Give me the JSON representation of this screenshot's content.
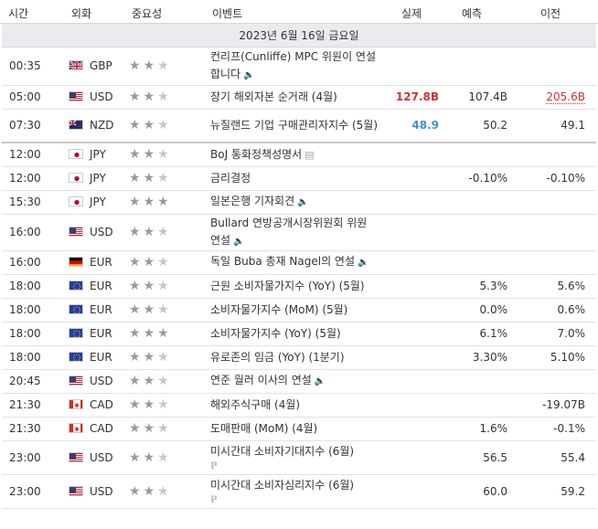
{
  "header": {
    "time": "시간",
    "currency": "외화",
    "importance": "중요성",
    "event": "이벤트",
    "actual": "실제",
    "forecast": "예측",
    "previous": "이전"
  },
  "date_label": "2023년 6월 16일 금요일",
  "colors": {
    "red": "#d32f2f",
    "blue": "#3f8fd6",
    "date_bg": "#e9ebef"
  },
  "rows": [
    {
      "time": "00:35",
      "currency": "GBP",
      "flag": "gb",
      "stars": 2,
      "event": "컨리프(Cunliffe) MPC 위원이 연설합니다",
      "icon": "speaker-icon",
      "actual": "",
      "forecast": "",
      "previous": ""
    },
    {
      "time": "05:00",
      "currency": "USD",
      "flag": "us",
      "stars": 2,
      "event": "장기 해외자본 순거래 (4월)",
      "icon": "",
      "actual": "127.8B",
      "actual_color": "red",
      "forecast": "107.4B",
      "previous": "205.6B",
      "previous_color": "red"
    },
    {
      "time": "07:30",
      "currency": "NZD",
      "flag": "nz",
      "stars": 2,
      "event": "뉴질랜드 기업 구매관리자지수 (5월)",
      "icon": "",
      "actual": "48.9",
      "actual_color": "blue",
      "forecast": "50.2",
      "previous": "49.1"
    },
    {
      "time": "12:00",
      "currency": "JPY",
      "flag": "jp",
      "stars": 2,
      "event": "BoJ 통화정책성명서",
      "icon": "document-icon",
      "actual": "",
      "forecast": "",
      "previous": "",
      "group_start": true
    },
    {
      "time": "12:00",
      "currency": "JPY",
      "flag": "jp",
      "stars": 2,
      "event": "금리결정",
      "icon": "",
      "actual": "",
      "forecast": "-0.10%",
      "previous": "-0.10%"
    },
    {
      "time": "15:30",
      "currency": "JPY",
      "flag": "jp",
      "stars": 3,
      "event": "일본은행 기자회견",
      "icon": "speaker-icon",
      "actual": "",
      "forecast": "",
      "previous": ""
    },
    {
      "time": "16:00",
      "currency": "USD",
      "flag": "us",
      "stars": 2,
      "event": "Bullard 연방공개시장위원회 위원 연설",
      "icon": "speaker-icon",
      "actual": "",
      "forecast": "",
      "previous": ""
    },
    {
      "time": "16:00",
      "currency": "EUR",
      "flag": "de",
      "stars": 2,
      "event": "독일 Buba 총재 Nagel의 연설",
      "icon": "speaker-icon",
      "actual": "",
      "forecast": "",
      "previous": ""
    },
    {
      "time": "18:00",
      "currency": "EUR",
      "flag": "eu",
      "stars": 2,
      "event": "근원 소비자물가지수 (YoY) (5월)",
      "icon": "",
      "actual": "",
      "forecast": "5.3%",
      "previous": "5.6%"
    },
    {
      "time": "18:00",
      "currency": "EUR",
      "flag": "eu",
      "stars": 2,
      "event": "소비자물가지수 (MoM) (5월)",
      "icon": "",
      "actual": "",
      "forecast": "0.0%",
      "previous": "0.6%"
    },
    {
      "time": "18:00",
      "currency": "EUR",
      "flag": "eu",
      "stars": 3,
      "event": "소비자물가지수 (YoY) (5월)",
      "icon": "",
      "actual": "",
      "forecast": "6.1%",
      "previous": "7.0%"
    },
    {
      "time": "18:00",
      "currency": "EUR",
      "flag": "eu",
      "stars": 2,
      "event": "유로존의 임금 (YoY) (1분기)",
      "icon": "",
      "actual": "",
      "forecast": "3.30%",
      "previous": "5.10%"
    },
    {
      "time": "20:45",
      "currency": "USD",
      "flag": "us",
      "stars": 2,
      "event": "연준 월러 이사의 연설",
      "icon": "speaker-icon",
      "actual": "",
      "forecast": "",
      "previous": ""
    },
    {
      "time": "21:30",
      "currency": "CAD",
      "flag": "ca",
      "stars": 2,
      "event": "해외주식구매 (4월)",
      "icon": "",
      "actual": "",
      "forecast": "",
      "previous": "-19.07B"
    },
    {
      "time": "21:30",
      "currency": "CAD",
      "flag": "ca",
      "stars": 2,
      "event": "도매판매 (MoM) (4월)",
      "icon": "",
      "actual": "",
      "forecast": "1.6%",
      "previous": "-0.1%"
    },
    {
      "time": "23:00",
      "currency": "USD",
      "flag": "us",
      "stars": 2,
      "event": "미시간대 소비자기대지수 (6월)",
      "icon": "preliminary-icon",
      "actual": "",
      "forecast": "56.5",
      "previous": "55.4"
    },
    {
      "time": "23:00",
      "currency": "USD",
      "flag": "us",
      "stars": 2,
      "event": "미시간대 소비자심리지수 (6월)",
      "icon": "preliminary-icon",
      "actual": "",
      "forecast": "60.0",
      "previous": "59.2"
    }
  ]
}
